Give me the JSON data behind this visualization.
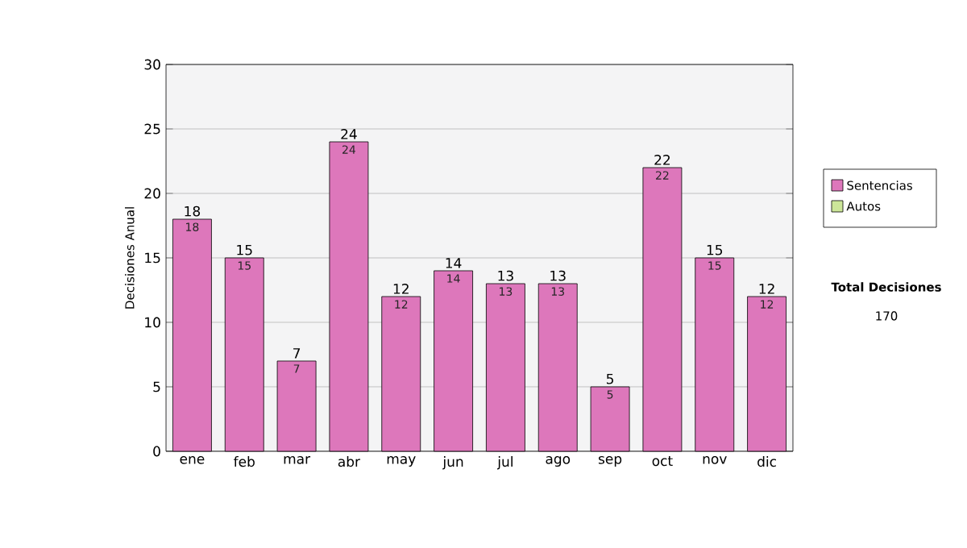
{
  "chart_data": {
    "type": "bar",
    "ylabel": "Decisiones Anual",
    "categories": [
      "ene",
      "feb",
      "mar",
      "abr",
      "may",
      "jun",
      "jul",
      "ago",
      "sep",
      "oct",
      "nov",
      "dic"
    ],
    "series": [
      {
        "name": "Sentencias",
        "color": "#dd77bb",
        "values": [
          18,
          15,
          7,
          24,
          12,
          14,
          13,
          13,
          5,
          22,
          15,
          12
        ]
      },
      {
        "name": "Autos",
        "color": "#cce699",
        "values": [
          null,
          null,
          null,
          null,
          null,
          null,
          null,
          null,
          null,
          null,
          null,
          null
        ]
      }
    ],
    "stacked": true,
    "data_labels": true,
    "totals": [
      "18",
      "15",
      "7",
      "24",
      "12",
      "14",
      "13",
      "13",
      "5",
      "22",
      "15",
      "12"
    ],
    "ylim": [
      0,
      30
    ],
    "yticks": [
      0,
      5,
      10,
      15,
      20,
      25,
      30
    ],
    "grid": "y",
    "legend": "right",
    "annotations": [
      "Total Decisiones",
      "170"
    ]
  }
}
